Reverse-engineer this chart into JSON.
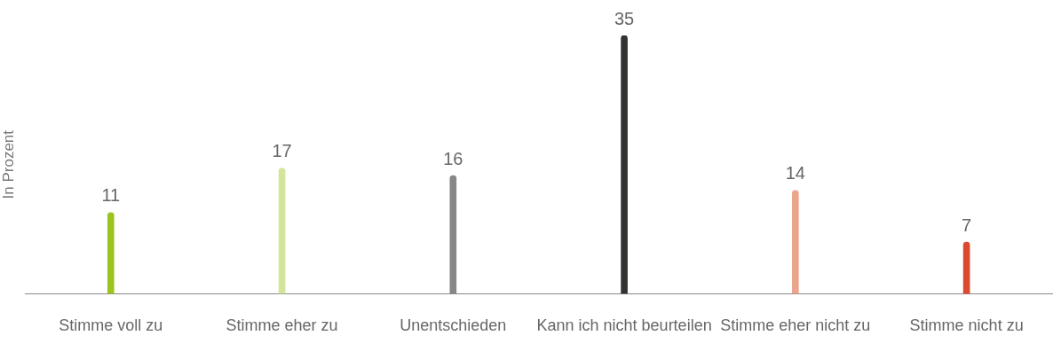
{
  "chart_data": {
    "type": "bar",
    "ylabel": "In Prozent",
    "categories": [
      "Stimme voll zu",
      "Stimme eher zu",
      "Unentschieden",
      "Kann ich nicht beurteilen",
      "Stimme eher nicht zu",
      "Stimme nicht zu"
    ],
    "values": [
      11,
      17,
      16,
      35,
      14,
      7
    ],
    "colors": [
      "#9bc41f",
      "#d3e59b",
      "#878787",
      "#33332f",
      "#eca58d",
      "#d94a31"
    ],
    "data_labels": true,
    "grid": false,
    "legend": false
  }
}
